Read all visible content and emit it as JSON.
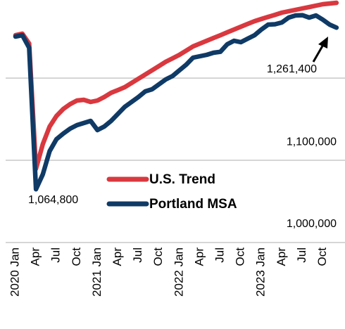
{
  "chart_data": {
    "type": "line",
    "categories": [
      "2020 Jan",
      null,
      null,
      "Apr",
      null,
      null,
      "Jul",
      null,
      null,
      "Oct",
      null,
      null,
      "2021 Jan",
      null,
      null,
      "Apr",
      null,
      null,
      "Jul",
      null,
      null,
      "Oct",
      null,
      null,
      "2022 Jan",
      null,
      null,
      "Apr",
      null,
      null,
      "Jul",
      null,
      null,
      "Oct",
      null,
      null,
      "2023 Jan",
      null,
      null,
      "Apr",
      null,
      null,
      "Jul",
      null,
      null,
      "Oct",
      null,
      null
    ],
    "series": [
      {
        "name": "U.S. Trend",
        "color": "#d9383f",
        "values": [
          1252200,
          1254000,
          1242000,
          1089800,
          1119700,
          1141100,
          1153900,
          1162500,
          1168400,
          1172700,
          1173600,
          1171000,
          1172700,
          1177000,
          1182100,
          1185500,
          1189000,
          1194100,
          1199200,
          1204400,
          1209500,
          1214600,
          1219800,
          1224000,
          1228300,
          1233400,
          1238600,
          1242000,
          1245400,
          1248800,
          1252200,
          1255700,
          1259100,
          1262500,
          1265900,
          1269300,
          1271900,
          1274500,
          1277000,
          1279600,
          1281300,
          1283000,
          1284700,
          1286400,
          1288200,
          1289900,
          1290700,
          1291600
        ]
      },
      {
        "name": "Portland MSA",
        "color": "#0f3a66",
        "values": [
          1250500,
          1252200,
          1236900,
          1064800,
          1082900,
          1111200,
          1125700,
          1132500,
          1138500,
          1142800,
          1145400,
          1147900,
          1136800,
          1141100,
          1147900,
          1156500,
          1165000,
          1171000,
          1177000,
          1183800,
          1186400,
          1192400,
          1198400,
          1202600,
          1209500,
          1216300,
          1224900,
          1226600,
          1228300,
          1230900,
          1232000,
          1241100,
          1245400,
          1243700,
          1248000,
          1252200,
          1259100,
          1265100,
          1265500,
          1267600,
          1273600,
          1276200,
          1276500,
          1273600,
          1276200,
          1271100,
          1265100,
          1261400
        ]
      }
    ],
    "ylim": [
      1000000,
      1295000
    ],
    "yticks": [
      {
        "value": 1000000,
        "label": "1,000,000"
      },
      {
        "value": 1100000,
        "label": "1,100,000"
      },
      {
        "value": 1200000,
        "label": null
      }
    ],
    "grid": true,
    "annotations": [
      {
        "text": "1,064,800",
        "series": 1,
        "index": 3
      },
      {
        "text": "1,261,400",
        "series": 1,
        "index": 47
      }
    ]
  }
}
